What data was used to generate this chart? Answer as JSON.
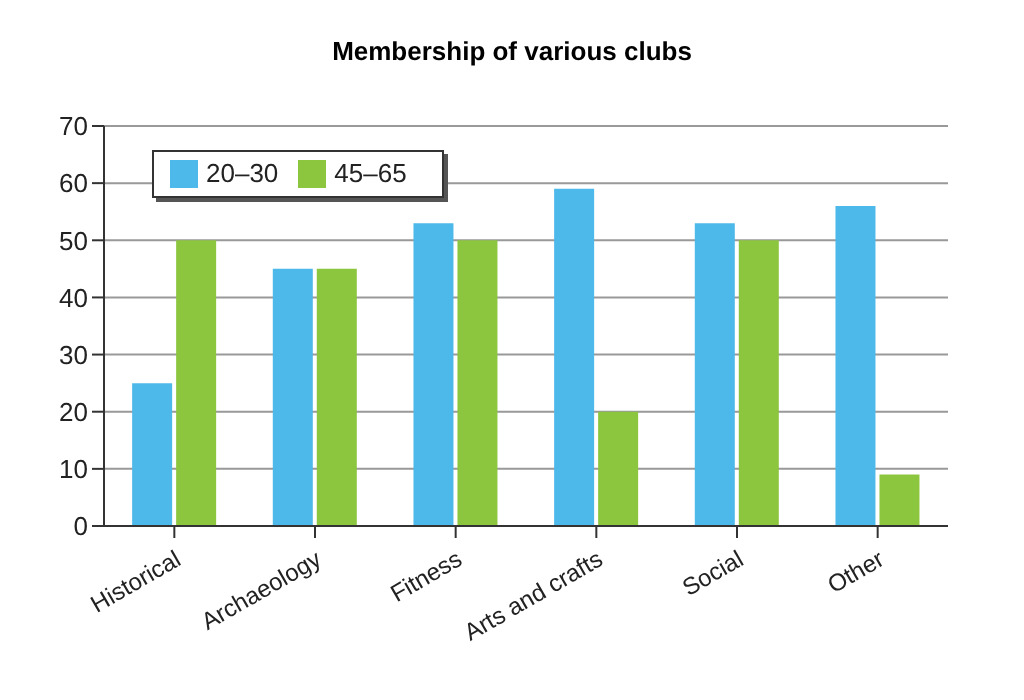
{
  "chart_data": {
    "type": "bar",
    "title": "Membership of various clubs",
    "categories": [
      "Historical",
      "Archaeology",
      "Fitness",
      "Arts and crafts",
      "Social",
      "Other"
    ],
    "series": [
      {
        "name": "20–30",
        "color": "#4db8ea",
        "values": [
          25,
          45,
          53,
          59,
          53,
          56
        ]
      },
      {
        "name": "45–65",
        "color": "#8cc63f",
        "values": [
          50,
          45,
          50,
          20,
          50,
          9
        ]
      }
    ],
    "ylim": [
      0,
      70
    ],
    "yticks": [
      0,
      10,
      20,
      30,
      40,
      50,
      60,
      70
    ],
    "grid": "y",
    "legend": "top left"
  }
}
